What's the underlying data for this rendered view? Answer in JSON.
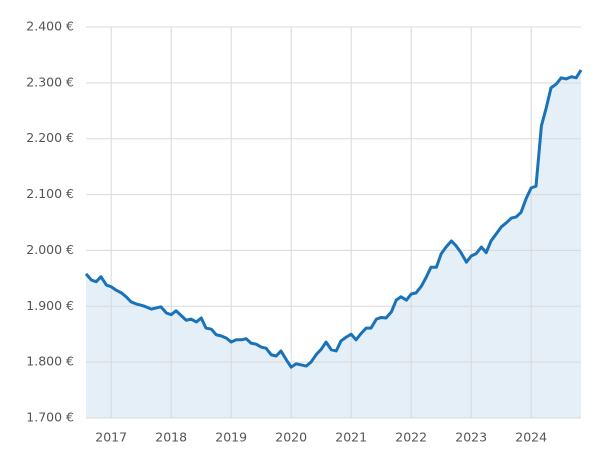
{
  "chart_data": {
    "type": "area-line",
    "x": [
      2016.58,
      2016.67,
      2016.75,
      2016.83,
      2016.92,
      2017.0,
      2017.08,
      2017.17,
      2017.25,
      2017.33,
      2017.42,
      2017.5,
      2017.58,
      2017.67,
      2017.75,
      2017.83,
      2017.92,
      2018.0,
      2018.08,
      2018.17,
      2018.25,
      2018.33,
      2018.42,
      2018.5,
      2018.58,
      2018.67,
      2018.75,
      2018.83,
      2018.92,
      2019.0,
      2019.08,
      2019.17,
      2019.25,
      2019.33,
      2019.42,
      2019.5,
      2019.58,
      2019.67,
      2019.75,
      2019.83,
      2019.92,
      2020.0,
      2020.08,
      2020.17,
      2020.25,
      2020.33,
      2020.42,
      2020.5,
      2020.58,
      2020.67,
      2020.75,
      2020.83,
      2020.92,
      2021.0,
      2021.08,
      2021.17,
      2021.25,
      2021.33,
      2021.42,
      2021.5,
      2021.58,
      2021.67,
      2021.75,
      2021.83,
      2021.92,
      2022.0,
      2022.08,
      2022.17,
      2022.25,
      2022.33,
      2022.42,
      2022.5,
      2022.58,
      2022.67,
      2022.75,
      2022.83,
      2022.92,
      2023.0,
      2023.08,
      2023.17,
      2023.25,
      2023.33,
      2023.42,
      2023.5,
      2023.58,
      2023.67,
      2023.75,
      2023.83,
      2023.92,
      2024.0,
      2024.08,
      2024.17,
      2024.25,
      2024.33,
      2024.42,
      2024.5,
      2024.58,
      2024.67,
      2024.75,
      2024.83
    ],
    "values": [
      1958,
      1947,
      1944,
      1953,
      1938,
      1935,
      1929,
      1924,
      1917,
      1908,
      1904,
      1902,
      1899,
      1895,
      1897,
      1899,
      1888,
      1885,
      1892,
      1883,
      1875,
      1877,
      1872,
      1879,
      1861,
      1859,
      1849,
      1847,
      1843,
      1836,
      1840,
      1840,
      1842,
      1834,
      1832,
      1827,
      1825,
      1813,
      1811,
      1820,
      1804,
      1791,
      1797,
      1795,
      1793,
      1800,
      1814,
      1823,
      1836,
      1822,
      1820,
      1838,
      1845,
      1850,
      1840,
      1852,
      1861,
      1861,
      1877,
      1880,
      1879,
      1890,
      1911,
      1917,
      1911,
      1922,
      1924,
      1936,
      1952,
      1970,
      1970,
      1994,
      2006,
      2017,
      2008,
      1996,
      1979,
      1990,
      1994,
      2006,
      1996,
      2017,
      2030,
      2042,
      2049,
      2058,
      2060,
      2068,
      2094,
      2112,
      2115,
      2223,
      2255,
      2291,
      2298,
      2309,
      2307,
      2311,
      2309,
      2323
    ],
    "color": "#1a73b8",
    "fill": "#e4eff8",
    "xlim": [
      2016.58,
      2024.83
    ],
    "xticks": [
      2017,
      2018,
      2019,
      2020,
      2021,
      2022,
      2023,
      2024
    ],
    "ylim": [
      1700,
      2400
    ],
    "yticks": [
      {
        "value": 1700,
        "label": "1.700 €"
      },
      {
        "value": 1800,
        "label": "1.800 €"
      },
      {
        "value": 1900,
        "label": "1.900 €"
      },
      {
        "value": 2000,
        "label": "2.000 €"
      },
      {
        "value": 2100,
        "label": "2.100 €"
      },
      {
        "value": 2200,
        "label": "2.200 €"
      },
      {
        "value": 2300,
        "label": "2.300 €"
      },
      {
        "value": 2400,
        "label": "2.400 €"
      }
    ],
    "grid": true
  }
}
